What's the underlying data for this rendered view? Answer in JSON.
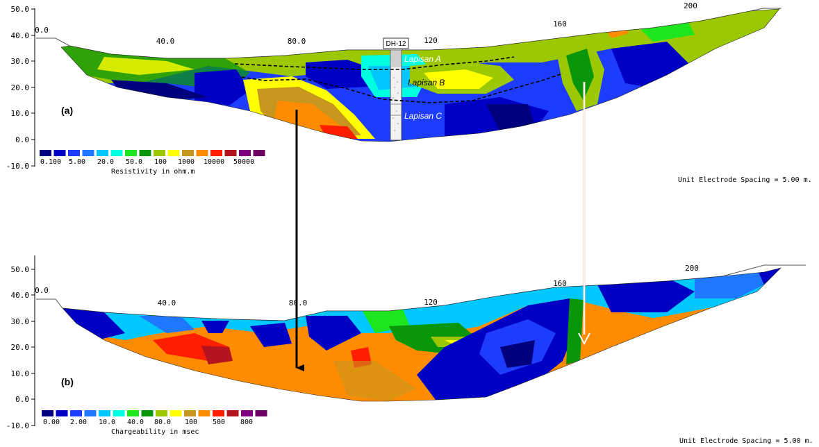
{
  "panel_a": {
    "label": "(a)",
    "y_ticks": [
      "50.0",
      "40.0",
      "30.0",
      "20.0",
      "10.0",
      "0.0",
      "-10.0"
    ],
    "x_ticks": [
      "0.0",
      "40.0",
      "80.0",
      "120",
      "160",
      "200"
    ],
    "borehole": "DH-12",
    "layers": [
      "Lapisan A",
      "Lapisan B",
      "Lapisan C"
    ],
    "legend_values": [
      "0.100",
      "5.00",
      "20.0",
      "50.0",
      "100",
      "1000",
      "10000",
      "50000"
    ],
    "legend_title": "Resistivity in ohm.m",
    "spacing_note": "Unit Electrode Spacing = 5.00 m."
  },
  "panel_b": {
    "label": "(b)",
    "y_ticks": [
      "50.0",
      "40.0",
      "30.0",
      "20.0",
      "10.0",
      "0.0",
      "-10.0"
    ],
    "x_ticks": [
      "0.0",
      "40.0",
      "80.0",
      "120",
      "160",
      "200"
    ],
    "legend_values": [
      "0.00",
      "2.00",
      "10.0",
      "40.0",
      "80.0",
      "100",
      "500",
      "800"
    ],
    "legend_title": "Chargeability in msec",
    "spacing_note": "Unit Electrode Spacing = 5.00 m."
  },
  "palette": [
    "#00007f",
    "#0000c4",
    "#1e3cff",
    "#1e78ff",
    "#00c8ff",
    "#00ffe0",
    "#1ee61e",
    "#0a960a",
    "#9bc800",
    "#ffff00",
    "#c8961e",
    "#ff8c00",
    "#ff1e00",
    "#b4141e",
    "#80007f",
    "#6e0064"
  ],
  "icons": [
    "arrow-down-black",
    "arrow-down-white"
  ]
}
